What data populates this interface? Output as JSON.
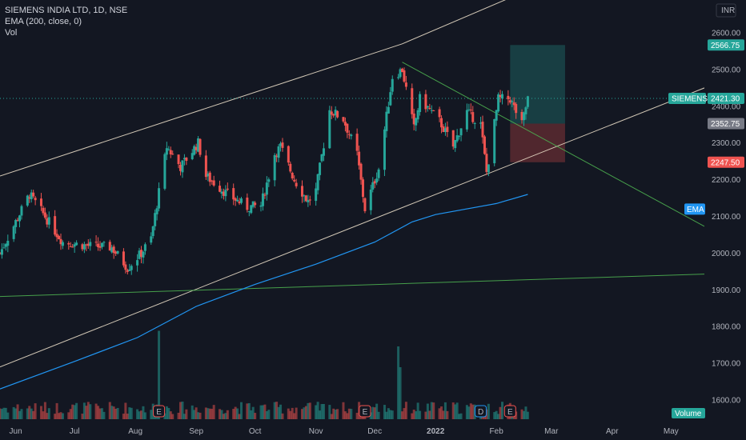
{
  "header": {
    "title": "SIEMENS INDIA LTD, 1D, NSE",
    "indicator": "EMA (200, close, 0)",
    "volume_label": "Vol",
    "currency": "INR"
  },
  "colors": {
    "bg": "#131722",
    "up": "#26a69a",
    "down": "#ef5350",
    "ema": "#2196f3",
    "channel": "#e8dcc6",
    "green_line": "#4caf50",
    "grid_text": "#b2b5be"
  },
  "axis": {
    "y_ticks": [
      "2600.00",
      "2500.00",
      "2400.00",
      "2300.00",
      "2200.00",
      "2100.00",
      "2000.00",
      "1900.00",
      "1800.00",
      "1700.00",
      "1600.00"
    ],
    "x_ticks": [
      "Jun",
      "Jul",
      "Aug",
      "Sep",
      "Oct",
      "Nov",
      "Dec",
      "2022",
      "Feb",
      "Mar",
      "Apr",
      "May"
    ]
  },
  "price_labels": {
    "target": "2566.75",
    "symbol": "SIEMENS",
    "last": "2421.30",
    "entry": "2352.75",
    "stop": "2247.50",
    "ema": "EMA",
    "volume": "Volume"
  },
  "event_markers": [
    "E",
    "E",
    "D",
    "E"
  ],
  "chart_data": {
    "type": "candlestick",
    "title": "SIEMENS INDIA LTD, 1D, NSE",
    "ylim": [
      1545,
      2690
    ],
    "x_range": [
      "2021-05-24",
      "2022-05-18"
    ],
    "series": [
      {
        "name": "EMA (200, close, 0)",
        "points": [
          [
            "2021-05-24",
            1630
          ],
          [
            "2021-07-01",
            1705
          ],
          [
            "2021-08-02",
            1770
          ],
          [
            "2021-09-01",
            1855
          ],
          [
            "2021-10-01",
            1915
          ],
          [
            "2021-11-01",
            1970
          ],
          [
            "2021-12-01",
            2030
          ],
          [
            "2021-12-20",
            2085
          ],
          [
            "2022-01-01",
            2105
          ],
          [
            "2022-02-01",
            2135
          ],
          [
            "2022-02-17",
            2160
          ]
        ]
      },
      {
        "name": "Volume"
      }
    ],
    "trendlines": [
      {
        "name": "upper-channel",
        "points": [
          [
            "2021-05-24",
            2210
          ],
          [
            "2021-12-15",
            2570
          ],
          [
            "2022-02-10",
            2700
          ]
        ]
      },
      {
        "name": "lower-channel",
        "points": [
          [
            "2021-05-24",
            1690
          ],
          [
            "2022-05-18",
            2450
          ]
        ]
      },
      {
        "name": "descending-line",
        "points": [
          [
            "2021-12-15",
            2520
          ],
          [
            "2022-05-18",
            2073
          ]
        ]
      },
      {
        "name": "support-line",
        "points": [
          [
            "2021-05-24",
            1882
          ],
          [
            "2022-05-18",
            1943
          ]
        ]
      }
    ],
    "position": {
      "type": "long",
      "entry": 2352.75,
      "target": 2566.75,
      "stop": 2247.5,
      "from": "2022-02-08",
      "to": "2022-03-08"
    },
    "last_price": 2421.3,
    "anchors": [
      [
        "2021-05-24",
        2000
      ],
      [
        "2021-06-08",
        2160
      ],
      [
        "2021-06-14",
        2115
      ],
      [
        "2021-06-25",
        2030
      ],
      [
        "2021-07-08",
        2020
      ],
      [
        "2021-07-20",
        2015
      ],
      [
        "2021-07-28",
        1960
      ],
      [
        "2021-08-04",
        2000
      ],
      [
        "2021-08-09",
        2040
      ],
      [
        "2021-08-17",
        2290
      ],
      [
        "2021-08-24",
        2235
      ],
      [
        "2021-09-02",
        2300
      ],
      [
        "2021-09-06",
        2210
      ],
      [
        "2021-09-17",
        2160
      ],
      [
        "2021-09-27",
        2125
      ],
      [
        "2021-10-04",
        2130
      ],
      [
        "2021-10-11",
        2270
      ],
      [
        "2021-10-14",
        2290
      ],
      [
        "2021-10-21",
        2200
      ],
      [
        "2021-10-28",
        2140
      ],
      [
        "2021-11-01",
        2170
      ],
      [
        "2021-11-08",
        2390
      ],
      [
        "2021-11-15",
        2365
      ],
      [
        "2021-11-22",
        2270
      ],
      [
        "2021-11-26",
        2120
      ],
      [
        "2021-12-03",
        2230
      ],
      [
        "2021-12-10",
        2480
      ],
      [
        "2021-12-15",
        2500
      ],
      [
        "2021-12-21",
        2340
      ],
      [
        "2021-12-24",
        2420
      ],
      [
        "2022-01-03",
        2360
      ],
      [
        "2022-01-10",
        2290
      ],
      [
        "2022-01-17",
        2385
      ],
      [
        "2022-01-24",
        2350
      ],
      [
        "2022-01-27",
        2220
      ],
      [
        "2022-02-02",
        2420
      ],
      [
        "2022-02-08",
        2420
      ],
      [
        "2022-02-14",
        2350
      ],
      [
        "2022-02-17",
        2421.3
      ]
    ],
    "volume_highlights": [
      [
        "2021-08-13",
        0.85
      ],
      [
        "2021-12-13",
        0.7
      ],
      [
        "2021-12-14",
        0.5
      ]
    ]
  }
}
